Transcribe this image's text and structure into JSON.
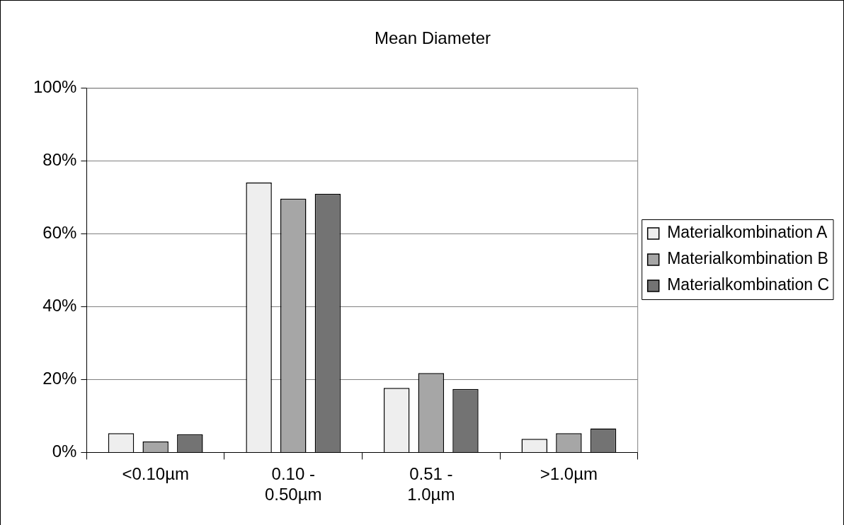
{
  "chart_data": {
    "type": "bar",
    "title": "Mean Diameter",
    "categories": [
      "<0.10µm",
      "0.10 - 0.50µm",
      "0.51 - 1.0µm",
      ">1.0µm"
    ],
    "series": [
      {
        "name": "Materialkombination A",
        "color": "#eeeeee",
        "values": [
          5.3,
          74.1,
          17.7,
          3.7
        ]
      },
      {
        "name": "Materialkombination B",
        "color": "#a6a6a6",
        "values": [
          3.0,
          69.7,
          21.8,
          5.3
        ]
      },
      {
        "name": "Materialkombination C",
        "color": "#737373",
        "values": [
          5.0,
          71.0,
          17.4,
          6.6
        ]
      }
    ],
    "ylim": [
      0,
      100
    ],
    "yticks": [
      {
        "value": 0,
        "label": "0%"
      },
      {
        "value": 20,
        "label": "20%"
      },
      {
        "value": 40,
        "label": "40%"
      },
      {
        "value": 60,
        "label": "60%"
      },
      {
        "value": 80,
        "label": "80%"
      },
      {
        "value": 100,
        "label": "100%"
      }
    ],
    "grid": "y",
    "legend": "right"
  }
}
